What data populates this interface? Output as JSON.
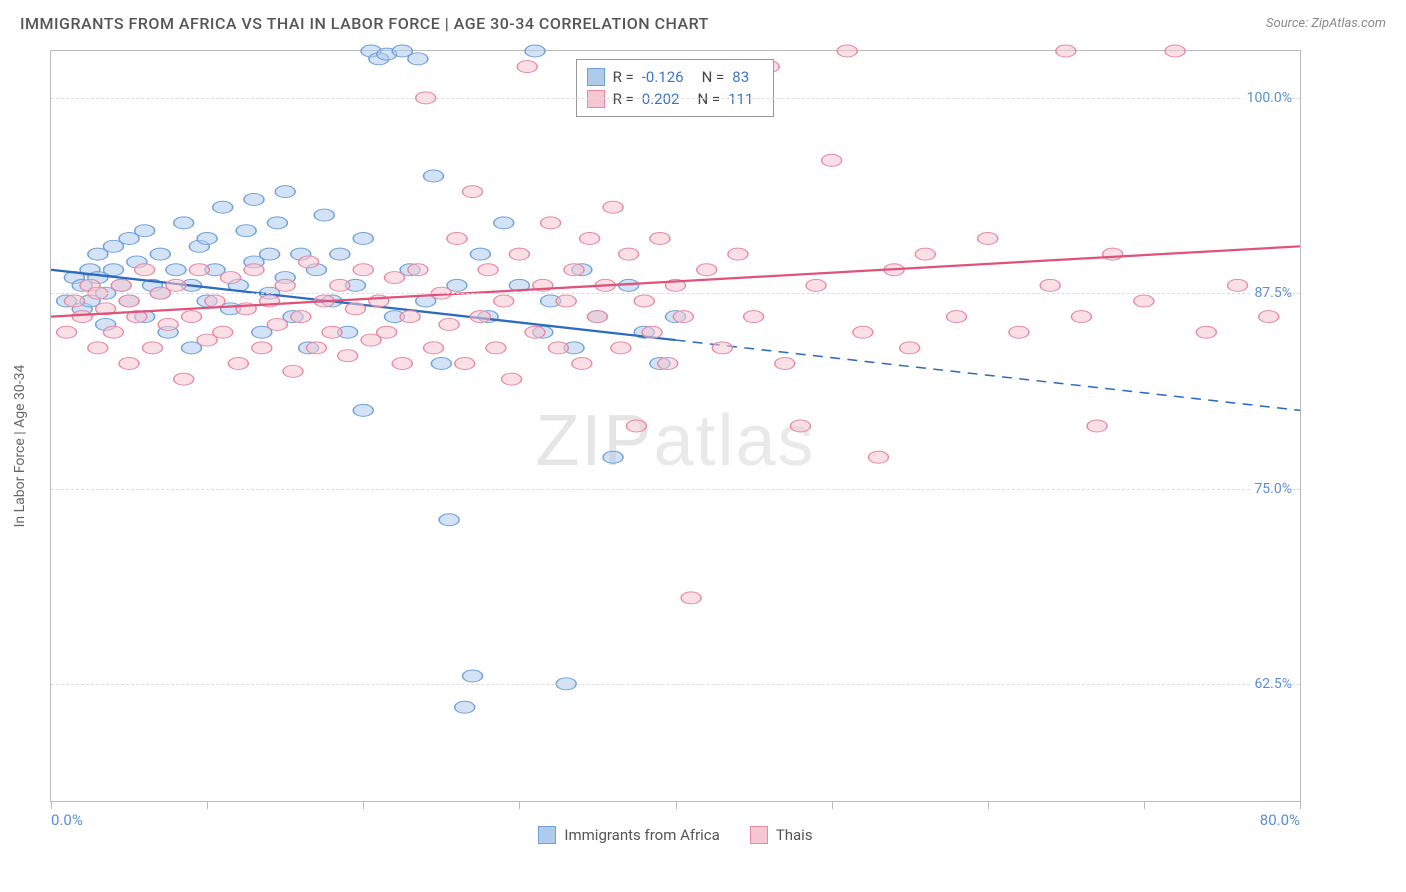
{
  "title": "IMMIGRANTS FROM AFRICA VS THAI IN LABOR FORCE | AGE 30-34 CORRELATION CHART",
  "source": "Source: ZipAtlas.com",
  "y_axis_label": "In Labor Force | Age 30-34",
  "watermark_bold": "ZIP",
  "watermark_thin": "atlas",
  "chart": {
    "type": "scatter-correlation",
    "background_color": "#ffffff",
    "grid_color": "#dddddd",
    "border_color": "#bbbbbb",
    "xlim": [
      0,
      80
    ],
    "ylim": [
      55,
      103
    ],
    "x_tick_positions": [
      0,
      10,
      20,
      30,
      40,
      50,
      60,
      70,
      80
    ],
    "x_min_label": "0.0%",
    "x_max_label": "80.0%",
    "y_grid": [
      {
        "value": 62.5,
        "label": "62.5%"
      },
      {
        "value": 75.0,
        "label": "75.0%"
      },
      {
        "value": 87.5,
        "label": "87.5%"
      },
      {
        "value": 100.0,
        "label": "100.0%"
      }
    ],
    "tick_label_color": "#5b8dd6",
    "marker_radius": 8,
    "marker_opacity": 0.55,
    "series": [
      {
        "id": "africa",
        "label": "Immigrants from Africa",
        "fill": "#aecbeb",
        "stroke": "#6fa0d8",
        "line_color": "#2d6bbf",
        "R": "-0.126",
        "N": "83",
        "trend": {
          "x1": 0,
          "y1": 89.0,
          "x2": 40,
          "y2": 84.5,
          "dash_to_x": 80,
          "dash_to_y": 80.0
        },
        "points": [
          [
            1,
            87
          ],
          [
            1.5,
            88.5
          ],
          [
            2,
            86.5
          ],
          [
            2,
            88
          ],
          [
            2.5,
            89
          ],
          [
            2.5,
            87
          ],
          [
            3,
            88.5
          ],
          [
            3,
            90
          ],
          [
            3.5,
            87.5
          ],
          [
            3.5,
            85.5
          ],
          [
            4,
            89
          ],
          [
            4,
            90.5
          ],
          [
            4.5,
            88
          ],
          [
            5,
            91
          ],
          [
            5,
            87
          ],
          [
            5.5,
            89.5
          ],
          [
            6,
            86
          ],
          [
            6,
            91.5
          ],
          [
            6.5,
            88
          ],
          [
            7,
            90
          ],
          [
            7,
            87.5
          ],
          [
            7.5,
            85
          ],
          [
            8,
            89
          ],
          [
            8.5,
            92
          ],
          [
            9,
            88
          ],
          [
            9,
            84
          ],
          [
            9.5,
            90.5
          ],
          [
            10,
            87
          ],
          [
            10,
            91
          ],
          [
            10.5,
            89
          ],
          [
            11,
            93
          ],
          [
            11.5,
            86.5
          ],
          [
            12,
            88
          ],
          [
            12.5,
            91.5
          ],
          [
            13,
            89.5
          ],
          [
            13,
            93.5
          ],
          [
            13.5,
            85
          ],
          [
            14,
            90
          ],
          [
            14,
            87.5
          ],
          [
            14.5,
            92
          ],
          [
            15,
            88.5
          ],
          [
            15,
            94
          ],
          [
            15.5,
            86
          ],
          [
            16,
            90
          ],
          [
            16.5,
            84
          ],
          [
            17,
            89
          ],
          [
            17.5,
            92.5
          ],
          [
            18,
            87
          ],
          [
            18.5,
            90
          ],
          [
            19,
            85
          ],
          [
            19.5,
            88
          ],
          [
            20,
            91
          ],
          [
            20,
            80
          ],
          [
            20.5,
            103
          ],
          [
            21,
            102.5
          ],
          [
            21.5,
            102.8
          ],
          [
            22,
            86
          ],
          [
            22.5,
            103
          ],
          [
            23,
            89
          ],
          [
            23.5,
            102.5
          ],
          [
            24,
            87
          ],
          [
            24.5,
            95
          ],
          [
            25,
            83
          ],
          [
            25.5,
            73
          ],
          [
            26,
            88
          ],
          [
            26.5,
            61
          ],
          [
            27,
            63
          ],
          [
            27.5,
            90
          ],
          [
            28,
            86
          ],
          [
            29,
            92
          ],
          [
            30,
            88
          ],
          [
            31,
            103
          ],
          [
            31.5,
            85
          ],
          [
            32,
            87
          ],
          [
            33,
            62.5
          ],
          [
            33.5,
            84
          ],
          [
            34,
            89
          ],
          [
            35,
            86
          ],
          [
            36,
            77
          ],
          [
            37,
            88
          ],
          [
            38,
            85
          ],
          [
            39,
            83
          ],
          [
            40,
            86
          ]
        ]
      },
      {
        "id": "thai",
        "label": "Thais",
        "fill": "#f6c6d2",
        "stroke": "#e78aa3",
        "line_color": "#e0527a",
        "R": "0.202",
        "N": "111",
        "trend": {
          "x1": 0,
          "y1": 86.0,
          "x2": 80,
          "y2": 90.5
        },
        "points": [
          [
            1,
            85
          ],
          [
            1.5,
            87
          ],
          [
            2,
            86
          ],
          [
            2.5,
            88
          ],
          [
            3,
            84
          ],
          [
            3,
            87.5
          ],
          [
            3.5,
            86.5
          ],
          [
            4,
            85
          ],
          [
            4.5,
            88
          ],
          [
            5,
            83
          ],
          [
            5,
            87
          ],
          [
            5.5,
            86
          ],
          [
            6,
            89
          ],
          [
            6.5,
            84
          ],
          [
            7,
            87.5
          ],
          [
            7.5,
            85.5
          ],
          [
            8,
            88
          ],
          [
            8.5,
            82
          ],
          [
            9,
            86
          ],
          [
            9.5,
            89
          ],
          [
            10,
            84.5
          ],
          [
            10.5,
            87
          ],
          [
            11,
            85
          ],
          [
            11.5,
            88.5
          ],
          [
            12,
            83
          ],
          [
            12.5,
            86.5
          ],
          [
            13,
            89
          ],
          [
            13.5,
            84
          ],
          [
            14,
            87
          ],
          [
            14.5,
            85.5
          ],
          [
            15,
            88
          ],
          [
            15.5,
            82.5
          ],
          [
            16,
            86
          ],
          [
            16.5,
            89.5
          ],
          [
            17,
            84
          ],
          [
            17.5,
            87
          ],
          [
            18,
            85
          ],
          [
            18.5,
            88
          ],
          [
            19,
            83.5
          ],
          [
            19.5,
            86.5
          ],
          [
            20,
            89
          ],
          [
            20.5,
            84.5
          ],
          [
            21,
            87
          ],
          [
            21.5,
            85
          ],
          [
            22,
            88.5
          ],
          [
            22.5,
            83
          ],
          [
            23,
            86
          ],
          [
            23.5,
            89
          ],
          [
            24,
            100
          ],
          [
            24.5,
            84
          ],
          [
            25,
            87.5
          ],
          [
            25.5,
            85.5
          ],
          [
            26,
            91
          ],
          [
            26.5,
            83
          ],
          [
            27,
            94
          ],
          [
            27.5,
            86
          ],
          [
            28,
            89
          ],
          [
            28.5,
            84
          ],
          [
            29,
            87
          ],
          [
            29.5,
            82
          ],
          [
            30,
            90
          ],
          [
            30.5,
            102
          ],
          [
            31,
            85
          ],
          [
            31.5,
            88
          ],
          [
            32,
            92
          ],
          [
            32.5,
            84
          ],
          [
            33,
            87
          ],
          [
            33.5,
            89
          ],
          [
            34,
            83
          ],
          [
            34.5,
            91
          ],
          [
            35,
            86
          ],
          [
            35.5,
            88
          ],
          [
            36,
            93
          ],
          [
            36.5,
            84
          ],
          [
            37,
            90
          ],
          [
            37.5,
            79
          ],
          [
            38,
            87
          ],
          [
            38.5,
            85
          ],
          [
            39,
            91
          ],
          [
            39.5,
            83
          ],
          [
            40,
            88
          ],
          [
            40.5,
            86
          ],
          [
            41,
            68
          ],
          [
            42,
            89
          ],
          [
            43,
            84
          ],
          [
            44,
            90
          ],
          [
            45,
            86
          ],
          [
            46,
            102
          ],
          [
            47,
            83
          ],
          [
            48,
            79
          ],
          [
            49,
            88
          ],
          [
            50,
            96
          ],
          [
            51,
            103
          ],
          [
            52,
            85
          ],
          [
            53,
            77
          ],
          [
            54,
            89
          ],
          [
            55,
            84
          ],
          [
            56,
            90
          ],
          [
            58,
            86
          ],
          [
            60,
            91
          ],
          [
            62,
            85
          ],
          [
            64,
            88
          ],
          [
            65,
            103
          ],
          [
            66,
            86
          ],
          [
            67,
            79
          ],
          [
            68,
            90
          ],
          [
            70,
            87
          ],
          [
            72,
            103
          ],
          [
            74,
            85
          ],
          [
            76,
            88
          ],
          [
            78,
            86
          ]
        ]
      }
    ]
  },
  "stats_labels": {
    "R": "R =",
    "N": "N ="
  },
  "legend": {
    "africa": "Immigrants from Africa",
    "thai": "Thais"
  }
}
